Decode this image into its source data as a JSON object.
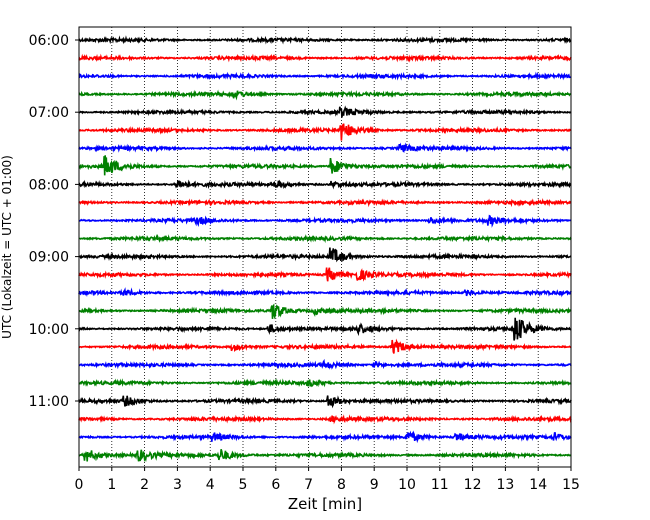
{
  "chart_data": {
    "type": "line",
    "xlabel": "Zeit  [min]",
    "ylabel": "UTC (Lokalzeit = UTC + 01:00)",
    "xlim": [
      0,
      15
    ],
    "x_ticks": [
      0,
      1,
      2,
      3,
      4,
      5,
      6,
      7,
      8,
      9,
      10,
      11,
      12,
      13,
      14,
      15
    ],
    "y_tick_labels": [
      "06:00",
      "07:00",
      "08:00",
      "09:00",
      "10:00",
      "11:00"
    ],
    "y_tick_rows": [
      0,
      4,
      8,
      12,
      16,
      20
    ],
    "grid": "vertical-dotted",
    "trace_colors": [
      "#000000",
      "#ff0000",
      "#0000ff",
      "#008000"
    ],
    "series": [
      {
        "start": "06:00",
        "color": "#000000",
        "events": []
      },
      {
        "start": "06:15",
        "color": "#ff0000",
        "events": []
      },
      {
        "start": "06:30",
        "color": "#0000ff",
        "events": []
      },
      {
        "start": "06:45",
        "color": "#008000",
        "events": [
          {
            "t": 4.7,
            "amp": 0.5
          }
        ]
      },
      {
        "start": "07:00",
        "color": "#000000",
        "events": [
          {
            "t": 8.0,
            "amp": 0.6
          }
        ]
      },
      {
        "start": "07:15",
        "color": "#ff0000",
        "events": [
          {
            "t": 8.0,
            "amp": 1.3
          }
        ]
      },
      {
        "start": "07:30",
        "color": "#0000ff",
        "events": [
          {
            "t": 9.8,
            "amp": 0.5
          }
        ]
      },
      {
        "start": "07:45",
        "color": "#008000",
        "events": [
          {
            "t": 0.8,
            "amp": 1.4
          },
          {
            "t": 7.7,
            "amp": 1.2
          }
        ]
      },
      {
        "start": "08:00",
        "color": "#000000",
        "events": [
          {
            "t": 3.0,
            "amp": 0.6
          },
          {
            "t": 6.0,
            "amp": 0.5
          },
          {
            "t": 7.7,
            "amp": 0.4
          }
        ]
      },
      {
        "start": "08:15",
        "color": "#ff0000",
        "events": []
      },
      {
        "start": "08:30",
        "color": "#0000ff",
        "events": [
          {
            "t": 3.6,
            "amp": 0.4
          },
          {
            "t": 10.7,
            "amp": 0.5
          },
          {
            "t": 12.5,
            "amp": 0.5
          }
        ]
      },
      {
        "start": "08:45",
        "color": "#008000",
        "events": []
      },
      {
        "start": "09:00",
        "color": "#000000",
        "events": [
          {
            "t": 7.7,
            "amp": 1.2
          }
        ]
      },
      {
        "start": "09:15",
        "color": "#ff0000",
        "events": [
          {
            "t": 7.6,
            "amp": 1.0
          },
          {
            "t": 8.5,
            "amp": 0.8
          }
        ]
      },
      {
        "start": "09:30",
        "color": "#0000ff",
        "events": [
          {
            "t": 1.4,
            "amp": 0.4
          },
          {
            "t": 11.8,
            "amp": 0.4
          }
        ]
      },
      {
        "start": "09:45",
        "color": "#008000",
        "events": [
          {
            "t": 5.9,
            "amp": 1.2
          },
          {
            "t": 7.2,
            "amp": 0.4
          }
        ]
      },
      {
        "start": "10:00",
        "color": "#000000",
        "events": [
          {
            "t": 5.8,
            "amp": 0.6
          },
          {
            "t": 8.5,
            "amp": 0.6
          },
          {
            "t": 13.3,
            "amp": 1.9
          }
        ]
      },
      {
        "start": "10:15",
        "color": "#ff0000",
        "events": [
          {
            "t": 4.7,
            "amp": 0.5
          },
          {
            "t": 9.6,
            "amp": 1.0
          }
        ]
      },
      {
        "start": "10:30",
        "color": "#0000ff",
        "events": [
          {
            "t": 7.5,
            "amp": 0.4
          },
          {
            "t": 9.0,
            "amp": 0.4
          }
        ]
      },
      {
        "start": "10:45",
        "color": "#008000",
        "events": [
          {
            "t": 7.0,
            "amp": 0.4
          }
        ]
      },
      {
        "start": "11:00",
        "color": "#000000",
        "events": [
          {
            "t": 1.4,
            "amp": 0.7
          },
          {
            "t": 7.6,
            "amp": 0.9
          }
        ]
      },
      {
        "start": "11:15",
        "color": "#ff0000",
        "events": [
          {
            "t": 7.7,
            "amp": 0.4
          }
        ]
      },
      {
        "start": "11:30",
        "color": "#0000ff",
        "events": [
          {
            "t": 4.1,
            "amp": 0.5
          },
          {
            "t": 10.0,
            "amp": 0.9
          },
          {
            "t": 11.5,
            "amp": 0.6
          },
          {
            "t": 14.5,
            "amp": 0.5
          }
        ]
      },
      {
        "start": "11:45",
        "color": "#008000",
        "events": [
          {
            "t": 0.2,
            "amp": 1.0
          },
          {
            "t": 1.8,
            "amp": 0.8
          },
          {
            "t": 4.3,
            "amp": 0.9
          }
        ]
      }
    ]
  }
}
